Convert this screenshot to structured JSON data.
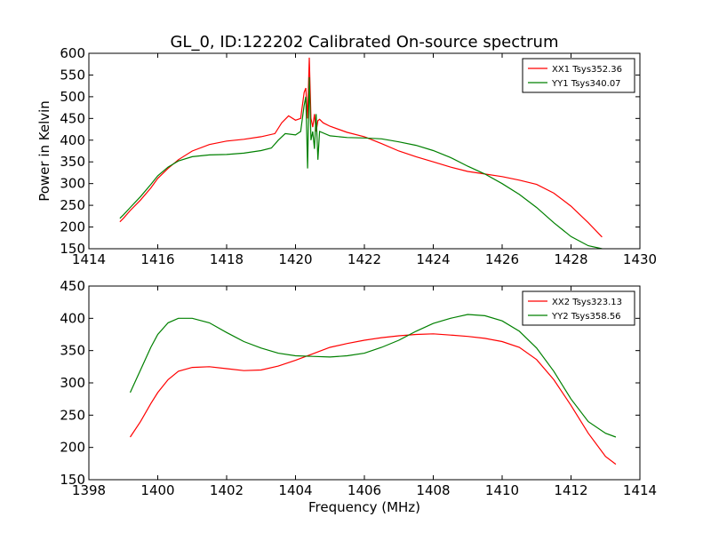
{
  "figure": {
    "title": "GL_0, ID:122202 Calibrated On-source spectrum"
  },
  "chart_data": [
    {
      "type": "line",
      "title": "GL_0, ID:122202 Calibrated On-source spectrum",
      "xlabel": "",
      "ylabel": "Power in Kelvin",
      "xlim": [
        1414,
        1430
      ],
      "ylim": [
        150,
        600
      ],
      "xticks": [
        1414,
        1416,
        1418,
        1420,
        1422,
        1424,
        1426,
        1428,
        1430
      ],
      "yticks": [
        150,
        200,
        250,
        300,
        350,
        400,
        450,
        500,
        550,
        600
      ],
      "grid": false,
      "legend_position": "top-right",
      "series": [
        {
          "name": "XX1 Tsys352.36",
          "color": "#ff0000",
          "x": [
            1414.9,
            1415.0,
            1415.2,
            1415.5,
            1415.8,
            1416.0,
            1416.3,
            1416.6,
            1417.0,
            1417.5,
            1418.0,
            1418.5,
            1419.0,
            1419.4,
            1419.6,
            1419.8,
            1420.0,
            1420.15,
            1420.25,
            1420.3,
            1420.35,
            1420.4,
            1420.45,
            1420.5,
            1420.55,
            1420.6,
            1420.65,
            1420.7,
            1420.8,
            1421.0,
            1421.5,
            1422.0,
            1422.5,
            1423.0,
            1423.5,
            1424.0,
            1424.5,
            1425.0,
            1425.5,
            1426.0,
            1426.5,
            1427.0,
            1427.5,
            1428.0,
            1428.5,
            1428.9
          ],
          "y": [
            212,
            220,
            238,
            262,
            290,
            312,
            335,
            355,
            375,
            390,
            398,
            402,
            408,
            415,
            440,
            456,
            446,
            450,
            510,
            520,
            450,
            590,
            450,
            430,
            460,
            420,
            445,
            448,
            440,
            432,
            418,
            408,
            392,
            375,
            362,
            350,
            338,
            328,
            322,
            316,
            308,
            298,
            278,
            248,
            210,
            177
          ]
        },
        {
          "name": "YY1 Tsys340.07",
          "color": "#008000",
          "x": [
            1414.9,
            1415.0,
            1415.2,
            1415.5,
            1415.8,
            1416.0,
            1416.3,
            1416.6,
            1417.0,
            1417.5,
            1418.0,
            1418.5,
            1419.0,
            1419.3,
            1419.5,
            1419.7,
            1420.0,
            1420.15,
            1420.25,
            1420.3,
            1420.35,
            1420.4,
            1420.45,
            1420.5,
            1420.55,
            1420.6,
            1420.65,
            1420.7,
            1421.0,
            1421.5,
            1422.0,
            1422.5,
            1423.0,
            1423.5,
            1424.0,
            1424.5,
            1425.0,
            1425.5,
            1426.0,
            1426.5,
            1427.0,
            1427.5,
            1428.0,
            1428.5,
            1428.9
          ],
          "y": [
            220,
            228,
            245,
            270,
            298,
            318,
            338,
            352,
            362,
            366,
            367,
            370,
            376,
            382,
            400,
            415,
            412,
            420,
            480,
            500,
            335,
            545,
            400,
            420,
            380,
            460,
            355,
            420,
            410,
            406,
            405,
            403,
            396,
            388,
            376,
            360,
            340,
            322,
            300,
            275,
            245,
            210,
            178,
            157,
            150
          ]
        }
      ]
    },
    {
      "type": "line",
      "title": "",
      "xlabel": "Frequency (MHz)",
      "ylabel": "",
      "xlim": [
        1398,
        1414
      ],
      "ylim": [
        150,
        450
      ],
      "xticks": [
        1398,
        1400,
        1402,
        1404,
        1406,
        1408,
        1410,
        1412,
        1414
      ],
      "yticks": [
        150,
        200,
        250,
        300,
        350,
        400,
        450
      ],
      "grid": false,
      "legend_position": "top-right",
      "series": [
        {
          "name": "XX2 Tsys323.13",
          "color": "#ff0000",
          "x": [
            1399.2,
            1399.5,
            1399.8,
            1400.0,
            1400.3,
            1400.6,
            1401.0,
            1401.5,
            1402.0,
            1402.5,
            1403.0,
            1403.5,
            1404.0,
            1404.5,
            1405.0,
            1405.5,
            1406.0,
            1406.5,
            1407.0,
            1407.5,
            1408.0,
            1408.5,
            1409.0,
            1409.5,
            1410.0,
            1410.5,
            1411.0,
            1411.5,
            1412.0,
            1412.5,
            1413.0,
            1413.3
          ],
          "y": [
            216,
            240,
            268,
            285,
            305,
            318,
            324,
            325,
            322,
            319,
            320,
            326,
            335,
            345,
            355,
            361,
            366,
            370,
            373,
            375,
            376,
            374,
            372,
            369,
            364,
            355,
            336,
            305,
            265,
            222,
            186,
            174
          ]
        },
        {
          "name": "YY2 Tsys358.56",
          "color": "#008000",
          "x": [
            1399.2,
            1399.5,
            1399.8,
            1400.0,
            1400.3,
            1400.6,
            1401.0,
            1401.5,
            1402.0,
            1402.5,
            1403.0,
            1403.5,
            1404.0,
            1404.5,
            1405.0,
            1405.5,
            1406.0,
            1406.5,
            1407.0,
            1407.5,
            1408.0,
            1408.5,
            1409.0,
            1409.5,
            1410.0,
            1410.5,
            1411.0,
            1411.5,
            1412.0,
            1412.5,
            1413.0,
            1413.3
          ],
          "y": [
            285,
            320,
            355,
            375,
            393,
            400,
            400,
            393,
            378,
            364,
            354,
            346,
            342,
            341,
            340,
            342,
            346,
            355,
            366,
            380,
            392,
            400,
            406,
            404,
            396,
            380,
            354,
            318,
            275,
            240,
            222,
            216
          ]
        }
      ]
    }
  ]
}
